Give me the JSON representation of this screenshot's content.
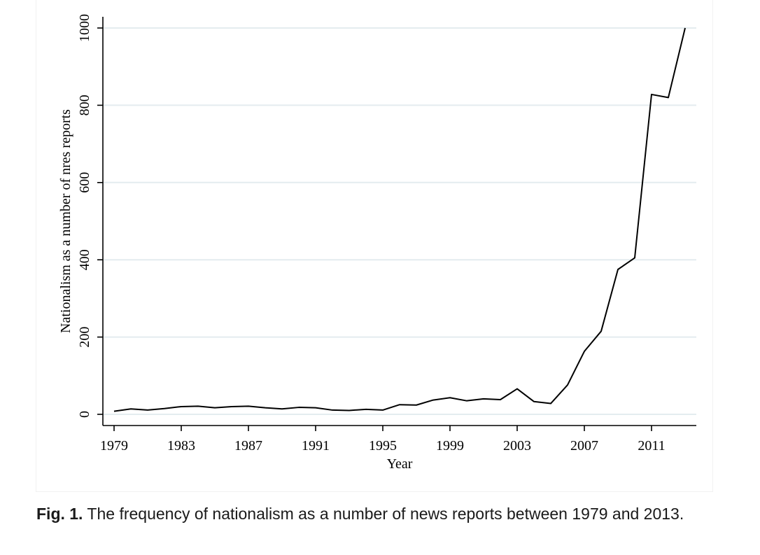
{
  "chart_data": {
    "type": "line",
    "xlabel": "Year",
    "ylabel": "Nationalism as a number of nres reports",
    "xlim": [
      1979,
      2013
    ],
    "ylim": [
      0,
      1000
    ],
    "x_ticks": [
      1979,
      1983,
      1987,
      1991,
      1995,
      1999,
      2003,
      2007,
      2011
    ],
    "y_ticks": [
      0,
      200,
      400,
      600,
      800,
      1000
    ],
    "grid": true,
    "series": [
      {
        "x": [
          1979,
          1980,
          1981,
          1982,
          1983,
          1984,
          1985,
          1986,
          1987,
          1988,
          1989,
          1990,
          1991,
          1992,
          1993,
          1994,
          1995,
          1996,
          1997,
          1998,
          1999,
          2000,
          2001,
          2002,
          2003,
          2004,
          2005,
          2006,
          2007,
          2008,
          2009,
          2010,
          2011,
          2012,
          2013
        ],
        "y": [
          8,
          14,
          11,
          15,
          20,
          21,
          17,
          20,
          21,
          17,
          14,
          18,
          17,
          11,
          10,
          13,
          11,
          25,
          24,
          37,
          43,
          35,
          40,
          38,
          66,
          33,
          28,
          76,
          163,
          215,
          375,
          405,
          828,
          820,
          1000
        ]
      }
    ]
  },
  "caption": {
    "label": "Fig. 1.",
    "text": " The frequency of nationalism as a number of news reports between 1979 and 2013."
  },
  "colors": {
    "line": "#000000",
    "grid": "#e4ecef",
    "axis": "#000000",
    "caption_text": "#1a1a1a"
  }
}
